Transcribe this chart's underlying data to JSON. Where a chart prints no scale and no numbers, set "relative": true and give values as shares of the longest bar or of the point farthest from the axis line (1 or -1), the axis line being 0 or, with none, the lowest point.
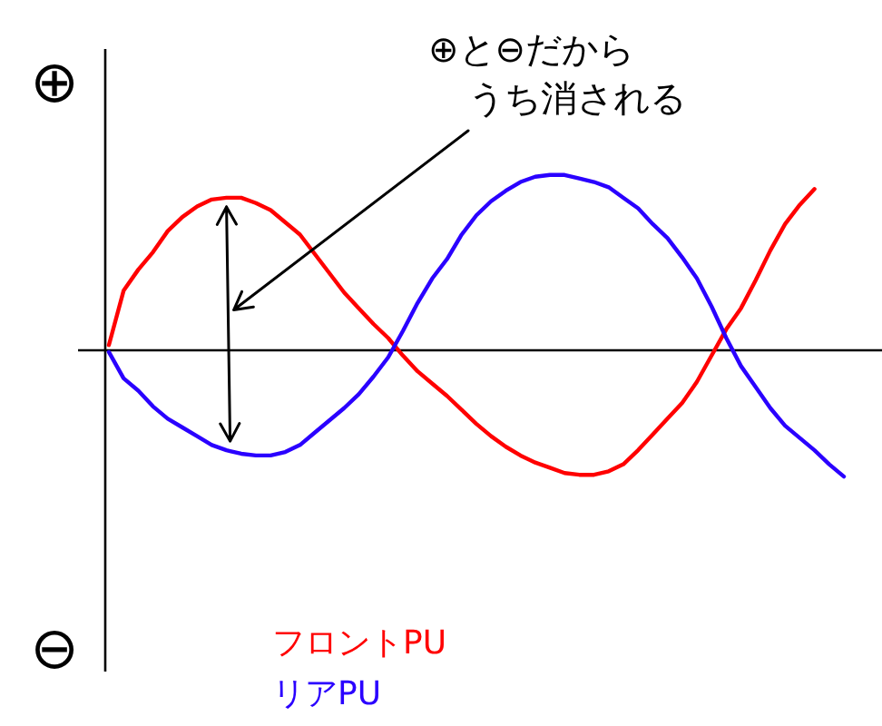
{
  "chart_data": {
    "type": "line",
    "relative": true,
    "categories": [
      null,
      null,
      null,
      null,
      null,
      null,
      null,
      null,
      null,
      null,
      null,
      null,
      null,
      null,
      null,
      null,
      null,
      null,
      null,
      null,
      null,
      null,
      null,
      null,
      null,
      null,
      null,
      null,
      null,
      null,
      null,
      null,
      null,
      null,
      null,
      null,
      null,
      null,
      null,
      null,
      null,
      null,
      null,
      null,
      null,
      null,
      null,
      null,
      null,
      null,
      null
    ],
    "series": [
      {
        "name": "フロントPU",
        "color": "#ff0000",
        "values": [
          0.03,
          0.34,
          0.46,
          0.56,
          0.68,
          0.76,
          0.82,
          0.86,
          0.87,
          0.87,
          0.84,
          0.8,
          0.73,
          0.66,
          0.55,
          0.44,
          0.33,
          0.24,
          0.15,
          0.07,
          -0.03,
          -0.12,
          -0.19,
          -0.26,
          -0.34,
          -0.42,
          -0.49,
          -0.55,
          -0.6,
          -0.64,
          -0.67,
          -0.7,
          -0.71,
          -0.71,
          -0.69,
          -0.65,
          -0.57,
          -0.48,
          -0.39,
          -0.3,
          -0.18,
          -0.03,
          0.12,
          0.24,
          0.4,
          0.57,
          0.72,
          0.83,
          0.92,
          null,
          null
        ]
      },
      {
        "name": "リアPU",
        "color": "#2a00ff",
        "values": [
          -0.01,
          -0.16,
          -0.23,
          -0.32,
          -0.39,
          -0.44,
          -0.49,
          -0.54,
          -0.57,
          -0.59,
          -0.6,
          -0.6,
          -0.58,
          -0.54,
          -0.47,
          -0.4,
          -0.33,
          -0.25,
          -0.15,
          -0.04,
          0.11,
          0.27,
          0.41,
          0.52,
          0.66,
          0.77,
          0.85,
          0.91,
          0.96,
          0.99,
          1.0,
          1.0,
          0.98,
          0.96,
          0.93,
          0.87,
          0.81,
          0.72,
          0.64,
          0.53,
          0.41,
          0.25,
          0.07,
          -0.09,
          -0.21,
          -0.33,
          -0.43,
          -0.5,
          -0.57,
          -0.65,
          -0.72
        ]
      }
    ],
    "annotations": [
      "⊕",
      "⊖",
      "⊕と⊖だからうち消される"
    ],
    "legend": "bottom"
  }
}
